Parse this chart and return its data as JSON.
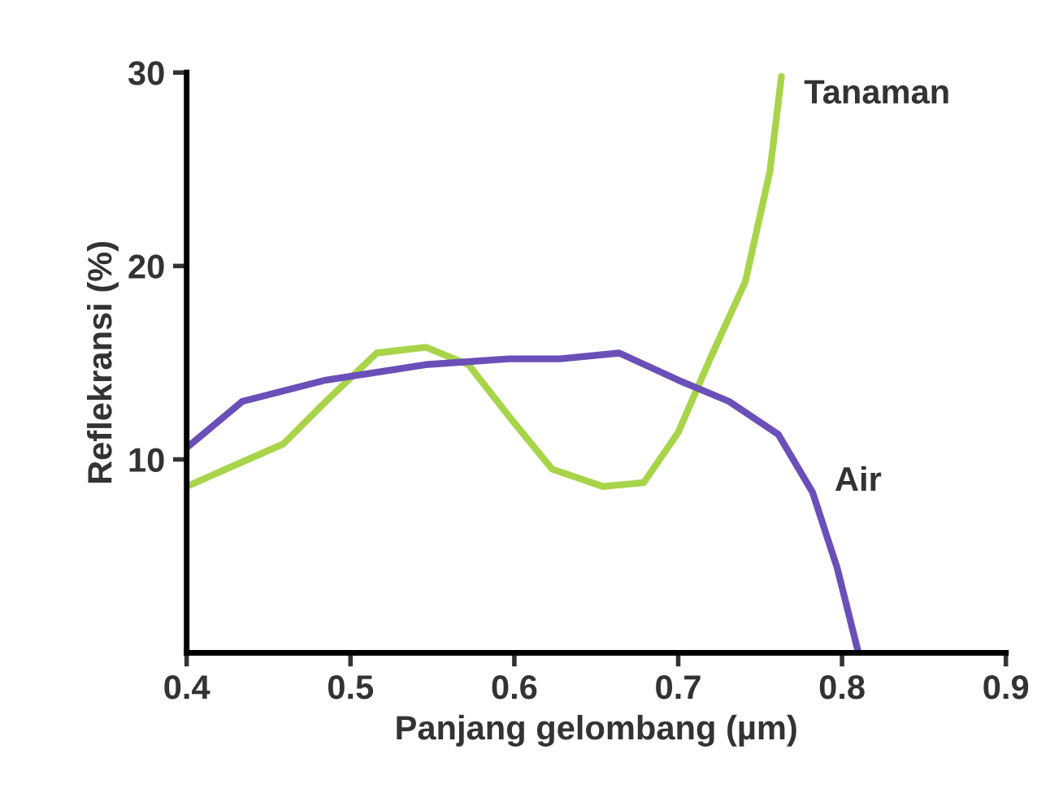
{
  "chart_data": {
    "type": "line",
    "xlabel": "Panjang gelombang (µm)",
    "ylabel": "Reflekransi (%)",
    "xlim": [
      0.4,
      0.9
    ],
    "ylim": [
      0,
      30
    ],
    "xticks": [
      0.4,
      0.5,
      0.6,
      0.7,
      0.8,
      0.9
    ],
    "yticks": [
      10,
      20,
      30
    ],
    "grid": false,
    "legend": false,
    "series": [
      {
        "name": "Tanaman",
        "color": "#a8d44a",
        "x": [
          0.4,
          0.424,
          0.459,
          0.485,
          0.516,
          0.546,
          0.572,
          0.597,
          0.623,
          0.654,
          0.679,
          0.7,
          0.72,
          0.741,
          0.756,
          0.763
        ],
        "values": [
          8.6,
          9.5,
          10.8,
          13.0,
          15.5,
          15.8,
          14.9,
          12.2,
          9.5,
          8.6,
          8.8,
          11.4,
          15.3,
          19.2,
          24.9,
          29.8
        ]
      },
      {
        "name": "Air",
        "color": "#6a4fb8",
        "x": [
          0.4,
          0.434,
          0.485,
          0.546,
          0.597,
          0.628,
          0.664,
          0.7,
          0.731,
          0.761,
          0.782,
          0.797,
          0.81
        ],
        "values": [
          10.6,
          13.0,
          14.1,
          14.9,
          15.2,
          15.2,
          15.5,
          14.1,
          13.0,
          11.3,
          8.3,
          4.4,
          0
        ]
      }
    ]
  }
}
